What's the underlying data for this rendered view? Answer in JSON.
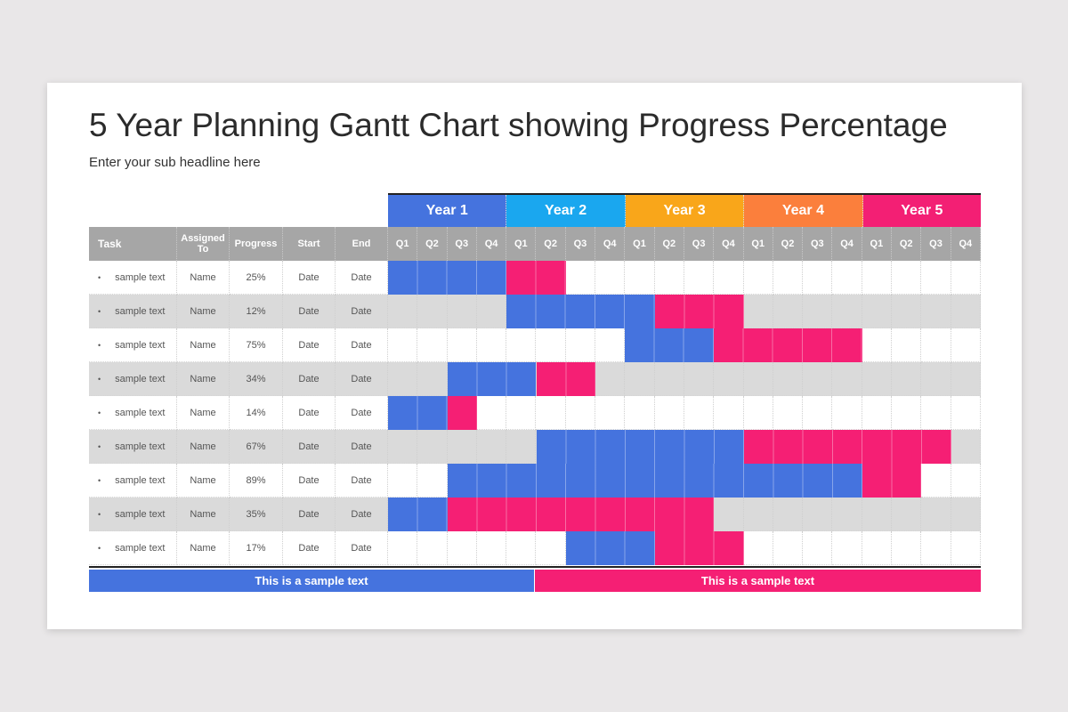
{
  "title": "5 Year Planning Gantt Chart showing Progress Percentage",
  "subtitle": "Enter your sub headline here",
  "colors": {
    "done": "#4573de",
    "remaining": "#f51f74",
    "years": [
      "#4573de",
      "#1aa7ef",
      "#f9a61a",
      "#fb7f3c",
      "#f31f74"
    ]
  },
  "chart_data": {
    "type": "gantt",
    "years": [
      "Year 1",
      "Year 2",
      "Year 3",
      "Year 4",
      "Year 5"
    ],
    "quarters": [
      "Q1",
      "Q2",
      "Q3",
      "Q4"
    ],
    "columns": [
      "Task",
      "Assigned To",
      "Progress",
      "Start",
      "End"
    ],
    "tasks": [
      {
        "task": "sample text",
        "assigned": "Name",
        "progress": "25%",
        "start": "Date",
        "end": "Date",
        "done": [
          0,
          3
        ],
        "remaining": [
          4,
          5
        ]
      },
      {
        "task": "sample text",
        "assigned": "Name",
        "progress": "12%",
        "start": "Date",
        "end": "Date",
        "done": [
          4,
          8
        ],
        "remaining": [
          9,
          11
        ]
      },
      {
        "task": "sample text",
        "assigned": "Name",
        "progress": "75%",
        "start": "Date",
        "end": "Date",
        "done": [
          8,
          10
        ],
        "remaining": [
          11,
          15
        ]
      },
      {
        "task": "sample text",
        "assigned": "Name",
        "progress": "34%",
        "start": "Date",
        "end": "Date",
        "done": [
          2,
          4
        ],
        "remaining": [
          5,
          6
        ]
      },
      {
        "task": "sample text",
        "assigned": "Name",
        "progress": "14%",
        "start": "Date",
        "end": "Date",
        "done": [
          0,
          1
        ],
        "remaining": [
          2,
          2
        ]
      },
      {
        "task": "sample text",
        "assigned": "Name",
        "progress": "67%",
        "start": "Date",
        "end": "Date",
        "done": [
          5,
          11
        ],
        "remaining": [
          12,
          18
        ]
      },
      {
        "task": "sample text",
        "assigned": "Name",
        "progress": "89%",
        "start": "Date",
        "end": "Date",
        "done": [
          2,
          15
        ],
        "remaining": [
          16,
          17
        ]
      },
      {
        "task": "sample text",
        "assigned": "Name",
        "progress": "35%",
        "start": "Date",
        "end": "Date",
        "done": [
          0,
          1
        ],
        "remaining": [
          2,
          10
        ]
      },
      {
        "task": "sample text",
        "assigned": "Name",
        "progress": "17%",
        "start": "Date",
        "end": "Date",
        "done": [
          6,
          8
        ],
        "remaining": [
          9,
          11
        ]
      }
    ],
    "legend": [
      "This is a sample text",
      "This is a sample text"
    ]
  }
}
